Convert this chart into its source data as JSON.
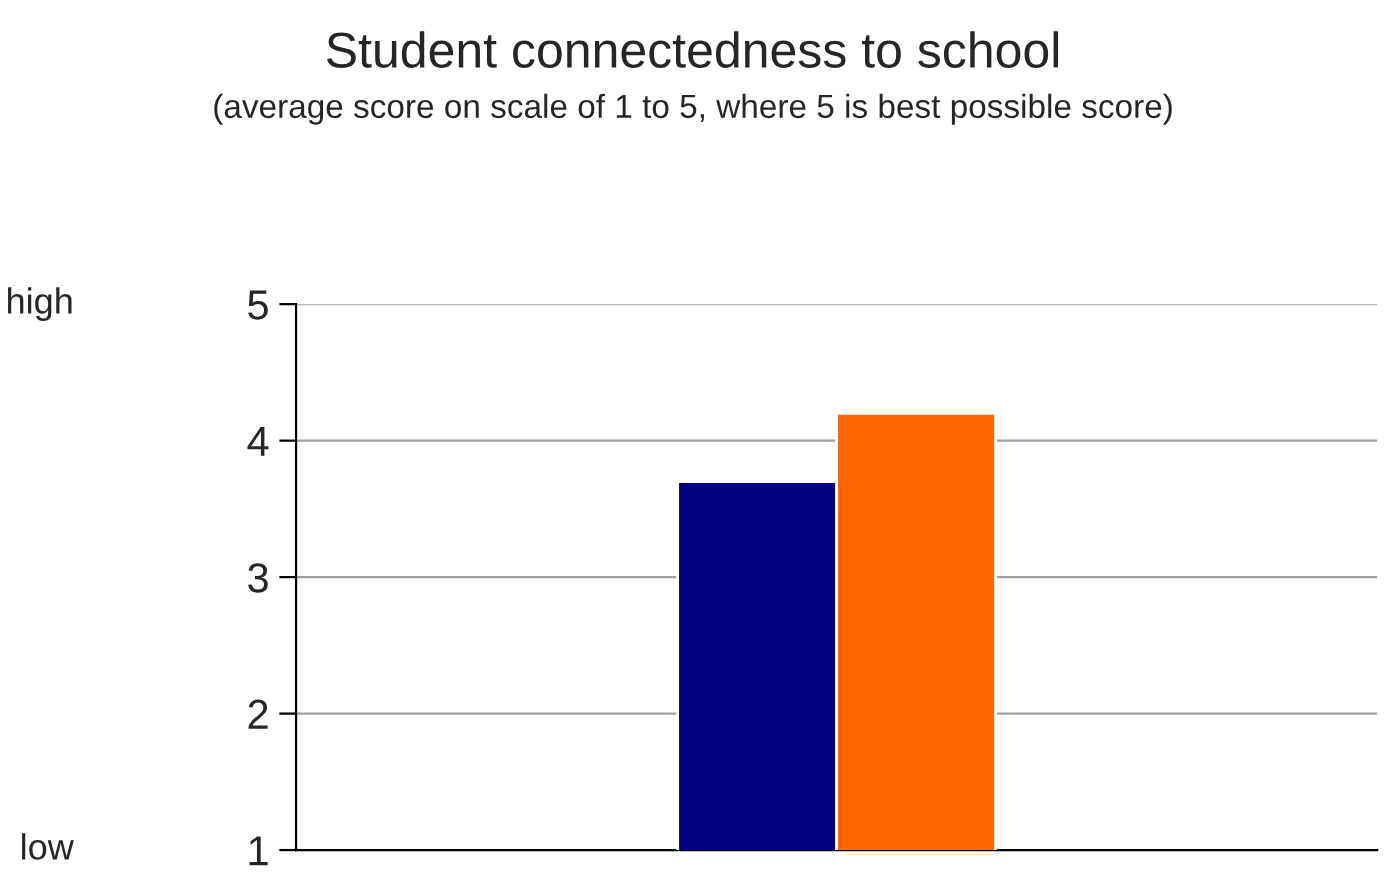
{
  "chart_data": {
    "type": "bar",
    "title": "Student connectedness to school",
    "subtitle": "(average score on scale of 1 to 5, where 5 is best possible score)",
    "categories": [
      null
    ],
    "series": [
      {
        "color": "#000080",
        "values": [
          3.7
        ]
      },
      {
        "color": "#ff6600",
        "values": [
          4.2
        ]
      }
    ],
    "ylim": [
      1,
      5
    ],
    "yticks": [
      1,
      2,
      3,
      4,
      5
    ],
    "grid": "y",
    "legend": false,
    "annotations": [
      "high",
      "low"
    ]
  }
}
